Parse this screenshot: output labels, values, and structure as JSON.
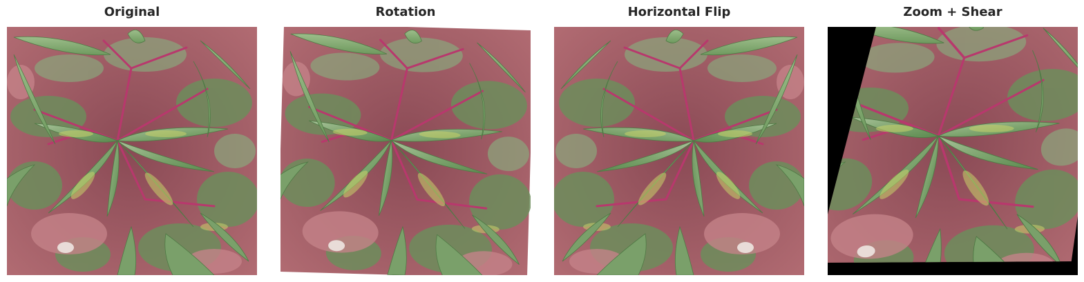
{
  "figure": {
    "panels": [
      {
        "id": "original",
        "title": "Original",
        "transform": "none"
      },
      {
        "id": "rotation",
        "title": "Rotation",
        "transform": "rotate"
      },
      {
        "id": "horizontal-flip",
        "title": "Horizontal Flip",
        "transform": "flip-horizontal"
      },
      {
        "id": "zoom-shear",
        "title": "Zoom + Shear",
        "transform": "zoom-shear"
      }
    ],
    "subject": "cassava plant leaves viewed from above",
    "fill_color": "#000000",
    "palette": {
      "soil": "#a5646a",
      "leaf_light": "#8fae84",
      "leaf_dark": "#5d8a55",
      "stem": "#b5366a",
      "background_foliage": "#6f8f5e"
    }
  }
}
